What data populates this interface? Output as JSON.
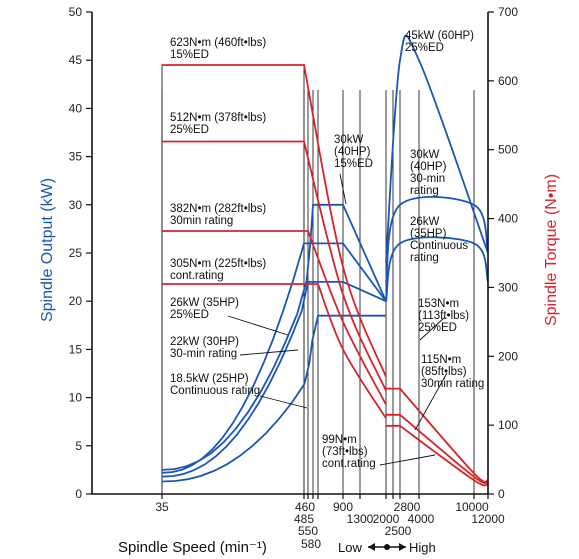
{
  "chart_data": {
    "type": "line",
    "xlabel": "Spindle Speed (min⁻¹)",
    "ylabel_left": "Spindle Output (kW)",
    "ylabel_right": "Spindle Torque (N•m)",
    "ylim_left": [
      0,
      50
    ],
    "ylim_right": [
      0,
      700
    ],
    "yticks_left": [
      "0",
      "5",
      "10",
      "15",
      "20",
      "25",
      "30",
      "35",
      "40",
      "45",
      "50"
    ],
    "yticks_right": [
      "0",
      "100",
      "200",
      "300",
      "400",
      "500",
      "600",
      "700"
    ],
    "x_scale": "non-linear",
    "xticks": [
      "35",
      "460",
      "485",
      "550",
      "580",
      "900",
      "1300",
      "2000",
      "2500",
      "2800",
      "4000",
      "10000",
      "12000"
    ],
    "low_high_label": {
      "low": "Low",
      "high": "High"
    },
    "output_series": [
      {
        "name": "26kW (35HP) 25%ED",
        "points": [
          [
            35,
            2.2
          ],
          [
            460,
            26
          ],
          [
            900,
            26
          ],
          [
            2000,
            20
          ]
        ]
      },
      {
        "name": "22kW (30HP) 30-min rating",
        "points": [
          [
            35,
            1.8
          ],
          [
            485,
            22
          ],
          [
            900,
            22
          ],
          [
            2000,
            20
          ]
        ]
      },
      {
        "name": "18.5kW (25HP) Continuous rating",
        "points": [
          [
            35,
            1.3
          ],
          [
            580,
            18.5
          ],
          [
            2000,
            18.5
          ]
        ]
      },
      {
        "name": "30kW (40HP) 15%ED",
        "points": [
          [
            35,
            2.5
          ],
          [
            550,
            30
          ],
          [
            900,
            30
          ],
          [
            2000,
            20
          ]
        ]
      },
      {
        "name": "45kW (60HP) 25%ED",
        "points": [
          [
            2000,
            24
          ],
          [
            2800,
            45
          ],
          [
            4000,
            45
          ],
          [
            12000,
            25
          ]
        ]
      },
      {
        "name": "30kW (40HP) 30-min rating",
        "points": [
          [
            2000,
            22
          ],
          [
            2800,
            30
          ],
          [
            10000,
            30
          ],
          [
            12000,
            25
          ]
        ]
      },
      {
        "name": "26kW (35HP) Continuous rating",
        "points": [
          [
            2000,
            20
          ],
          [
            2800,
            26
          ],
          [
            10000,
            26
          ],
          [
            12000,
            22
          ]
        ]
      }
    ],
    "torque_series": [
      {
        "name": "623N•m (460ft•lbs) 15%ED",
        "points": [
          [
            35,
            623
          ],
          [
            460,
            623
          ],
          [
            900,
            330
          ],
          [
            2000,
            170
          ]
        ]
      },
      {
        "name": "512N•m (378ft•lbs) 25%ED",
        "points": [
          [
            35,
            512
          ],
          [
            460,
            512
          ],
          [
            900,
            290
          ],
          [
            2000,
            150
          ]
        ]
      },
      {
        "name": "382N•m (282ft•lbs) 30min rating",
        "points": [
          [
            35,
            382
          ],
          [
            485,
            382
          ],
          [
            900,
            250
          ],
          [
            2000,
            130
          ]
        ]
      },
      {
        "name": "305N•m (225ft•lbs) cont.rating",
        "points": [
          [
            35,
            305
          ],
          [
            580,
            305
          ],
          [
            900,
            210
          ],
          [
            2000,
            110
          ]
        ]
      },
      {
        "name": "153N•m (113ft•lbs) 25%ED",
        "points": [
          [
            2000,
            153
          ],
          [
            2800,
            153
          ],
          [
            10000,
            30
          ],
          [
            12000,
            20
          ]
        ]
      },
      {
        "name": "115N•m (85ft•lbs) 30min rating",
        "points": [
          [
            2000,
            115
          ],
          [
            2800,
            115
          ],
          [
            10000,
            25
          ],
          [
            12000,
            18
          ]
        ]
      },
      {
        "name": "99N•m (73ft•lbs) cont.rating",
        "points": [
          [
            2000,
            99
          ],
          [
            2800,
            99
          ],
          [
            10000,
            20
          ],
          [
            12000,
            15
          ]
        ]
      }
    ],
    "annotations": {
      "a1": [
        "623N•m (460ft•lbs)",
        "15%ED"
      ],
      "a2": [
        "512N•m (378ft•lbs)",
        "25%ED"
      ],
      "a3": [
        "382N•m (282ft•lbs)",
        "30min rating"
      ],
      "a4": [
        "305N•m (225ft•lbs)",
        "cont.rating"
      ],
      "a5": [
        "26kW (35HP)",
        "25%ED"
      ],
      "a6": [
        "22kW (30HP)",
        "30-min rating"
      ],
      "a7": [
        "18.5kW (25HP)",
        "Continuous rating"
      ],
      "a8": [
        "30kW",
        "(40HP)",
        "15%ED"
      ],
      "a9": [
        "45kW (60HP)",
        "25%ED"
      ],
      "a10": [
        "30kW",
        "(40HP)",
        "30-min",
        "rating"
      ],
      "a11": [
        "26kW",
        "(35HP)",
        "Continuous",
        "rating"
      ],
      "a12": [
        "153N•m",
        "(113ft•lbs)",
        "25%ED"
      ],
      "a13": [
        "115N•m",
        "(85ft•lbs)",
        "30min rating"
      ],
      "a14": [
        "99N•m",
        "(73ft•lbs)",
        "cont.rating"
      ]
    }
  }
}
